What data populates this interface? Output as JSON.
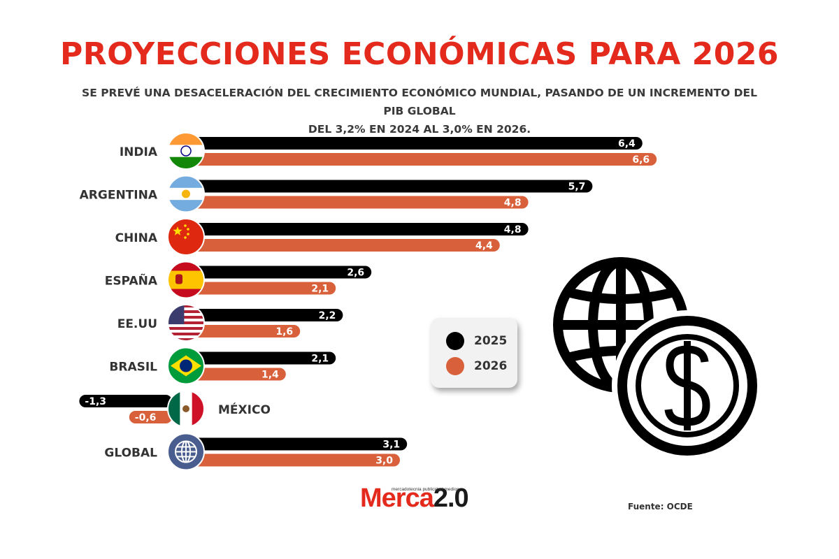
{
  "title": "PROYECCIONES ECONÓMICAS PARA 2026",
  "subtitle_line1": "SE PREVÉ UNA DESACELERACIÓN DEL CRECIMIENTO ECONÓMICO MUNDIAL, PASANDO DE UN INCREMENTO DEL PIB GLOBAL",
  "subtitle_line2": "DEL 3,2% EN 2024 AL 3,0% EN 2026.",
  "chart_data": {
    "type": "bar",
    "orientation": "horizontal",
    "categories": [
      "INDIA",
      "ARGENTINA",
      "CHINA",
      "ESPAÑA",
      "EE.UU",
      "BRASIL",
      "MÉXICO",
      "GLOBAL"
    ],
    "series": [
      {
        "name": "2025",
        "color": "#000000",
        "values": [
          6.4,
          5.7,
          4.8,
          2.6,
          2.2,
          2.1,
          -1.3,
          3.1
        ],
        "labels": [
          "6,4",
          "5,7",
          "4,8",
          "2,6",
          "2,2",
          "2,1",
          "-1,3",
          "3,1"
        ]
      },
      {
        "name": "2026",
        "color": "#d8603a",
        "values": [
          6.6,
          4.8,
          4.4,
          2.1,
          1.6,
          1.4,
          -0.6,
          3.0
        ],
        "labels": [
          "6,6",
          "4,8",
          "4,4",
          "2,1",
          "1,6",
          "1,4",
          "-0,6",
          "3,0"
        ]
      }
    ],
    "flag_icons": [
      "india-flag-icon",
      "argentina-flag-icon",
      "china-flag-icon",
      "spain-flag-icon",
      "usa-flag-icon",
      "brazil-flag-icon",
      "mexico-flag-icon",
      "globe-icon"
    ]
  },
  "legend": {
    "items": [
      {
        "label": "2025",
        "color": "#000000"
      },
      {
        "label": "2026",
        "color": "#d8603a"
      }
    ]
  },
  "decor_icon": "globe-dollar-icon",
  "brand": {
    "name": "Merca",
    "number": "2.0",
    "tagline": "mercadotecnia publicidad medios"
  },
  "source": "Fuente: OCDE",
  "colors": {
    "accent": "#e32a1d",
    "bar2025": "#000000",
    "bar2026": "#d8603a",
    "text": "#333333"
  }
}
